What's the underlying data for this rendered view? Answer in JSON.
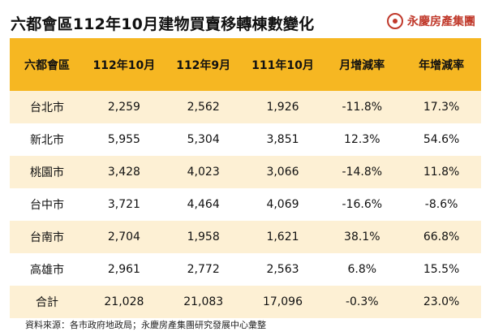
{
  "title": "六都會區112年10月建物買賣移轉棟數變化",
  "brand": {
    "name": "永慶房產集團",
    "logo_icon": "yungching-logo-icon",
    "color": "#c0392b"
  },
  "table": {
    "headers": [
      "六都會區",
      "112年10月",
      "112年9月",
      "111年10月",
      "月增減率",
      "年增減率"
    ],
    "rows": [
      [
        "台北市",
        "2,259",
        "2,562",
        "1,926",
        "-11.8%",
        "17.3%"
      ],
      [
        "新北市",
        "5,955",
        "5,304",
        "3,851",
        "12.3%",
        "54.6%"
      ],
      [
        "桃園市",
        "3,428",
        "4,023",
        "3,066",
        "-14.8%",
        "11.8%"
      ],
      [
        "台中市",
        "3,721",
        "4,464",
        "4,069",
        "-16.6%",
        "-8.6%"
      ],
      [
        "台南市",
        "2,704",
        "1,958",
        "1,621",
        "38.1%",
        "66.8%"
      ],
      [
        "高雄市",
        "2,961",
        "2,772",
        "2,563",
        "6.8%",
        "15.5%"
      ],
      [
        "合計",
        "21,028",
        "21,083",
        "17,096",
        "-0.3%",
        "23.0%"
      ]
    ],
    "header_color": "#f6b722",
    "stripe_color": "#fdf0d4"
  },
  "source": "資料來源：各市政府地政局；永慶房產集團研究發展中心彙整"
}
